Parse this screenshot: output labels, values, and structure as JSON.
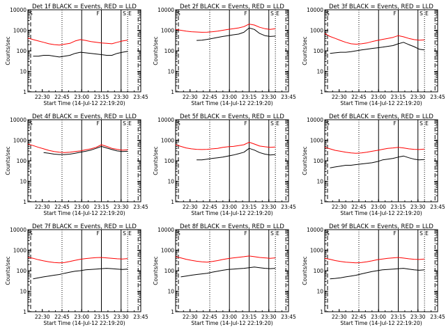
{
  "figure": {
    "ylabel": "Counts/sec",
    "xlabel": "Start Time (14-Jul-12 22:19:20)",
    "x_tick_labels": [
      "22:30",
      "22:45",
      "23:00",
      "23:15",
      "23:30",
      "23:45"
    ],
    "y_tick_labels": [
      "1",
      "10",
      "100",
      "1000",
      "10000"
    ],
    "marker_labels": {
      "start": "S",
      "flag": "F",
      "end_a": "S",
      "end_b": "E"
    },
    "colors": {
      "events": "#000000",
      "lld": "#ff0000",
      "axes": "#000000",
      "background": "#ffffff"
    },
    "legend_text": "BLACK = Events, RED = LLD"
  },
  "chart_data": [
    {
      "type": "line",
      "title": "Det 1f BLACK = Events, RED = LLD",
      "x_unit": "minutes after 22:19:20",
      "ylim": [
        1,
        10000
      ],
      "yscale": "log",
      "series": [
        {
          "color": "red",
          "x": [
            0,
            4,
            8,
            12,
            16,
            20,
            24,
            28,
            32,
            36,
            40,
            44,
            48,
            52,
            56,
            60,
            64,
            68,
            72,
            76
          ],
          "values": [
            420,
            350,
            300,
            260,
            220,
            200,
            190,
            210,
            230,
            300,
            350,
            320,
            280,
            260,
            240,
            230,
            220,
            260,
            300,
            330
          ]
        },
        {
          "color": "black",
          "x": [
            4,
            8,
            12,
            16,
            20,
            24,
            28,
            32,
            36,
            40,
            44,
            48,
            52,
            56,
            60,
            64,
            68,
            72,
            76
          ],
          "values": [
            55,
            55,
            60,
            60,
            55,
            50,
            55,
            60,
            75,
            85,
            80,
            75,
            70,
            65,
            60,
            60,
            75,
            85,
            95
          ]
        }
      ]
    },
    {
      "type": "line",
      "title": "Det 2f BLACK = Events, RED = LLD",
      "x_unit": "minutes after 22:19:20",
      "ylim": [
        1,
        10000
      ],
      "yscale": "log",
      "series": [
        {
          "color": "red",
          "x": [
            0,
            4,
            8,
            12,
            16,
            20,
            24,
            28,
            32,
            36,
            40,
            44,
            48,
            52,
            56,
            60,
            64,
            68,
            72,
            76
          ],
          "values": [
            1100,
            1000,
            900,
            850,
            820,
            800,
            810,
            850,
            900,
            1000,
            1100,
            1200,
            1300,
            1500,
            2000,
            1800,
            1400,
            1200,
            1100,
            1200
          ]
        },
        {
          "color": "black",
          "x": [
            16,
            20,
            24,
            28,
            32,
            36,
            40,
            44,
            48,
            52,
            56,
            60,
            64,
            68,
            72,
            76
          ],
          "values": [
            320,
            330,
            360,
            400,
            450,
            500,
            550,
            600,
            650,
            800,
            1300,
            1100,
            700,
            550,
            500,
            520
          ]
        }
      ]
    },
    {
      "type": "line",
      "title": "Det 3f BLACK = Events, RED = LLD",
      "x_unit": "minutes after 22:19:20",
      "ylim": [
        1,
        10000
      ],
      "yscale": "log",
      "series": [
        {
          "color": "red",
          "x": [
            0,
            4,
            8,
            12,
            16,
            20,
            24,
            28,
            32,
            36,
            40,
            44,
            48,
            52,
            56,
            60,
            64,
            68,
            72,
            76
          ],
          "values": [
            700,
            500,
            400,
            320,
            260,
            220,
            210,
            220,
            240,
            280,
            320,
            360,
            400,
            450,
            550,
            480,
            400,
            350,
            330,
            340
          ]
        },
        {
          "color": "black",
          "x": [
            4,
            8,
            12,
            16,
            20,
            24,
            28,
            32,
            36,
            40,
            44,
            48,
            52,
            56,
            60,
            64,
            68,
            72,
            76
          ],
          "values": [
            75,
            80,
            85,
            85,
            90,
            100,
            110,
            120,
            130,
            140,
            150,
            165,
            180,
            220,
            260,
            200,
            160,
            120,
            110
          ]
        }
      ]
    },
    {
      "type": "line",
      "title": "Det 4f BLACK = Events, RED = LLD",
      "x_unit": "minutes after 22:19:20",
      "ylim": [
        1,
        10000
      ],
      "yscale": "log",
      "series": [
        {
          "color": "red",
          "x": [
            0,
            4,
            8,
            12,
            16,
            20,
            24,
            28,
            32,
            36,
            40,
            44,
            48,
            52,
            56,
            60,
            64,
            68,
            72,
            76
          ],
          "values": [
            650,
            550,
            450,
            380,
            320,
            280,
            260,
            250,
            260,
            280,
            300,
            340,
            380,
            450,
            600,
            500,
            400,
            360,
            330,
            340
          ]
        },
        {
          "color": "black",
          "x": [
            12,
            16,
            20,
            24,
            28,
            32,
            36,
            40,
            44,
            48,
            52,
            56,
            60,
            64,
            68,
            72,
            76
          ],
          "values": [
            250,
            230,
            210,
            200,
            200,
            210,
            230,
            260,
            290,
            330,
            400,
            500,
            420,
            350,
            300,
            280,
            290
          ]
        }
      ]
    },
    {
      "type": "line",
      "title": "Det 5f BLACK = Events, RED = LLD",
      "x_unit": "minutes after 22:19:20",
      "ylim": [
        1,
        10000
      ],
      "yscale": "log",
      "series": [
        {
          "color": "red",
          "x": [
            0,
            4,
            8,
            12,
            16,
            20,
            24,
            28,
            32,
            36,
            40,
            44,
            48,
            52,
            56,
            60,
            64,
            68,
            72,
            76
          ],
          "values": [
            600,
            500,
            420,
            380,
            360,
            350,
            360,
            380,
            400,
            450,
            480,
            500,
            550,
            600,
            800,
            650,
            520,
            480,
            450,
            470
          ]
        },
        {
          "color": "black",
          "x": [
            16,
            20,
            24,
            28,
            32,
            36,
            40,
            44,
            48,
            52,
            56,
            60,
            64,
            68,
            72,
            76
          ],
          "values": [
            110,
            110,
            120,
            130,
            140,
            150,
            170,
            190,
            220,
            260,
            400,
            330,
            250,
            210,
            190,
            200
          ]
        }
      ]
    },
    {
      "type": "line",
      "title": "Det 6f BLACK = Events, RED = LLD",
      "x_unit": "minutes after 22:19:20",
      "ylim": [
        1,
        10000
      ],
      "yscale": "log",
      "series": [
        {
          "color": "red",
          "x": [
            0,
            4,
            8,
            12,
            16,
            20,
            24,
            28,
            32,
            36,
            40,
            44,
            48,
            52,
            56,
            60,
            64,
            68,
            72,
            76
          ],
          "values": [
            450,
            380,
            320,
            290,
            260,
            240,
            230,
            240,
            260,
            290,
            320,
            360,
            400,
            420,
            450,
            420,
            380,
            360,
            350,
            370
          ]
        },
        {
          "color": "black",
          "x": [
            4,
            8,
            12,
            16,
            20,
            24,
            28,
            32,
            36,
            40,
            44,
            48,
            52,
            56,
            60,
            64,
            68,
            72,
            76
          ],
          "values": [
            45,
            50,
            55,
            60,
            60,
            65,
            70,
            75,
            80,
            90,
            110,
            120,
            130,
            150,
            170,
            140,
            120,
            110,
            115
          ]
        }
      ]
    },
    {
      "type": "line",
      "title": "Det 7f BLACK = Events, RED = LLD",
      "x_unit": "minutes after 22:19:20",
      "ylim": [
        1,
        10000
      ],
      "yscale": "log",
      "series": [
        {
          "color": "red",
          "x": [
            0,
            4,
            8,
            12,
            16,
            20,
            24,
            28,
            32,
            36,
            40,
            44,
            48,
            52,
            56,
            60,
            64,
            68,
            72,
            76
          ],
          "values": [
            450,
            400,
            340,
            300,
            270,
            250,
            240,
            250,
            280,
            320,
            360,
            390,
            410,
            430,
            440,
            420,
            400,
            380,
            370,
            390
          ]
        },
        {
          "color": "black",
          "x": [
            4,
            8,
            12,
            16,
            20,
            24,
            28,
            32,
            36,
            40,
            44,
            48,
            52,
            56,
            60,
            64,
            68,
            72,
            76
          ],
          "values": [
            40,
            45,
            50,
            55,
            60,
            65,
            75,
            85,
            95,
            100,
            110,
            115,
            120,
            125,
            130,
            125,
            120,
            115,
            120
          ]
        }
      ]
    },
    {
      "type": "line",
      "title": "Det 8f BLACK = Events, RED = LLD",
      "x_unit": "minutes after 22:19:20",
      "ylim": [
        1,
        10000
      ],
      "yscale": "log",
      "series": [
        {
          "color": "red",
          "x": [
            0,
            4,
            8,
            12,
            16,
            20,
            24,
            28,
            32,
            36,
            40,
            44,
            48,
            52,
            56,
            60,
            64,
            68,
            72,
            76
          ],
          "values": [
            480,
            420,
            360,
            320,
            290,
            270,
            260,
            280,
            310,
            350,
            390,
            420,
            450,
            480,
            520,
            480,
            440,
            420,
            400,
            420
          ]
        },
        {
          "color": "black",
          "x": [
            4,
            8,
            12,
            16,
            20,
            24,
            28,
            32,
            36,
            40,
            44,
            48,
            52,
            56,
            60,
            64,
            68,
            72,
            76
          ],
          "values": [
            50,
            55,
            60,
            65,
            70,
            75,
            85,
            95,
            105,
            115,
            120,
            125,
            130,
            140,
            150,
            140,
            130,
            125,
            130
          ]
        }
      ]
    },
    {
      "type": "line",
      "title": "Det 9f BLACK = Events, RED = LLD",
      "x_unit": "minutes after 22:19:20",
      "ylim": [
        1,
        10000
      ],
      "yscale": "log",
      "series": [
        {
          "color": "red",
          "x": [
            0,
            4,
            8,
            12,
            16,
            20,
            24,
            28,
            32,
            36,
            40,
            44,
            48,
            52,
            56,
            60,
            64,
            68,
            72,
            76
          ],
          "values": [
            400,
            360,
            310,
            280,
            260,
            250,
            240,
            250,
            270,
            300,
            340,
            370,
            400,
            420,
            440,
            410,
            380,
            360,
            350,
            370
          ]
        },
        {
          "color": "black",
          "x": [
            4,
            8,
            12,
            16,
            20,
            24,
            28,
            32,
            36,
            40,
            44,
            48,
            52,
            56,
            60,
            64,
            68,
            72,
            76
          ],
          "values": [
            40,
            42,
            45,
            50,
            55,
            60,
            70,
            80,
            90,
            100,
            110,
            115,
            120,
            125,
            130,
            120,
            110,
            105,
            110
          ]
        }
      ]
    }
  ]
}
